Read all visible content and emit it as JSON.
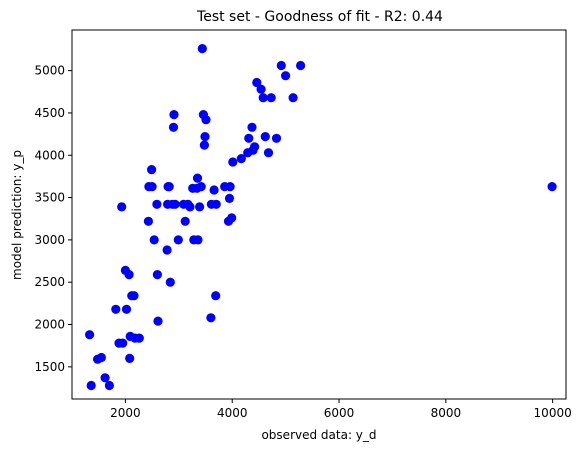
{
  "chart_data": {
    "type": "scatter",
    "title": "Test set - Goodness of fit -  R2: 0.44",
    "xlabel": "observed data: y_d",
    "ylabel": "model prediction: y_p",
    "xlim": [
      1000,
      10250
    ],
    "ylim": [
      1120,
      5480
    ],
    "xticks": [
      2000,
      4000,
      6000,
      8000,
      10000
    ],
    "yticks": [
      1500,
      2000,
      2500,
      3000,
      3500,
      4000,
      4500,
      5000
    ],
    "grid": false,
    "marker_color": "#0000ff",
    "points": [
      [
        1330,
        1880
      ],
      [
        1360,
        1280
      ],
      [
        1480,
        1590
      ],
      [
        1550,
        1610
      ],
      [
        1620,
        1370
      ],
      [
        1700,
        1280
      ],
      [
        1820,
        2180
      ],
      [
        1880,
        1780
      ],
      [
        1930,
        3390
      ],
      [
        1950,
        1780
      ],
      [
        2000,
        2640
      ],
      [
        2020,
        2180
      ],
      [
        2070,
        2590
      ],
      [
        2080,
        1600
      ],
      [
        2090,
        1860
      ],
      [
        2120,
        2340
      ],
      [
        2160,
        2340
      ],
      [
        2180,
        1840
      ],
      [
        2260,
        1840
      ],
      [
        2430,
        3220
      ],
      [
        2440,
        3630
      ],
      [
        2490,
        3830
      ],
      [
        2500,
        3630
      ],
      [
        2540,
        3000
      ],
      [
        2590,
        3420
      ],
      [
        2600,
        2590
      ],
      [
        2610,
        2040
      ],
      [
        2780,
        2880
      ],
      [
        2790,
        3420
      ],
      [
        2800,
        3630
      ],
      [
        2820,
        3630
      ],
      [
        2840,
        2500
      ],
      [
        2880,
        3420
      ],
      [
        2900,
        4330
      ],
      [
        2910,
        4480
      ],
      [
        2930,
        3420
      ],
      [
        2990,
        3000
      ],
      [
        3090,
        3420
      ],
      [
        3120,
        3220
      ],
      [
        3170,
        3420
      ],
      [
        3210,
        3390
      ],
      [
        3260,
        3610
      ],
      [
        3280,
        3000
      ],
      [
        3340,
        3610
      ],
      [
        3350,
        3730
      ],
      [
        3360,
        3000
      ],
      [
        3390,
        3390
      ],
      [
        3420,
        3630
      ],
      [
        3440,
        5260
      ],
      [
        3460,
        4480
      ],
      [
        3480,
        4120
      ],
      [
        3490,
        4220
      ],
      [
        3510,
        4420
      ],
      [
        3600,
        2080
      ],
      [
        3610,
        3420
      ],
      [
        3660,
        3590
      ],
      [
        3690,
        2340
      ],
      [
        3700,
        3420
      ],
      [
        3860,
        3630
      ],
      [
        3930,
        3220
      ],
      [
        3950,
        3490
      ],
      [
        3960,
        3630
      ],
      [
        3990,
        3260
      ],
      [
        4010,
        3920
      ],
      [
        4170,
        3960
      ],
      [
        4290,
        4030
      ],
      [
        4310,
        4200
      ],
      [
        4370,
        4330
      ],
      [
        4390,
        4060
      ],
      [
        4420,
        4100
      ],
      [
        4460,
        4860
      ],
      [
        4540,
        4780
      ],
      [
        4580,
        4680
      ],
      [
        4620,
        4220
      ],
      [
        4680,
        4030
      ],
      [
        4730,
        4680
      ],
      [
        4830,
        4200
      ],
      [
        4920,
        5060
      ],
      [
        5000,
        4940
      ],
      [
        5140,
        4680
      ],
      [
        5280,
        5060
      ],
      [
        9990,
        3630
      ]
    ]
  }
}
